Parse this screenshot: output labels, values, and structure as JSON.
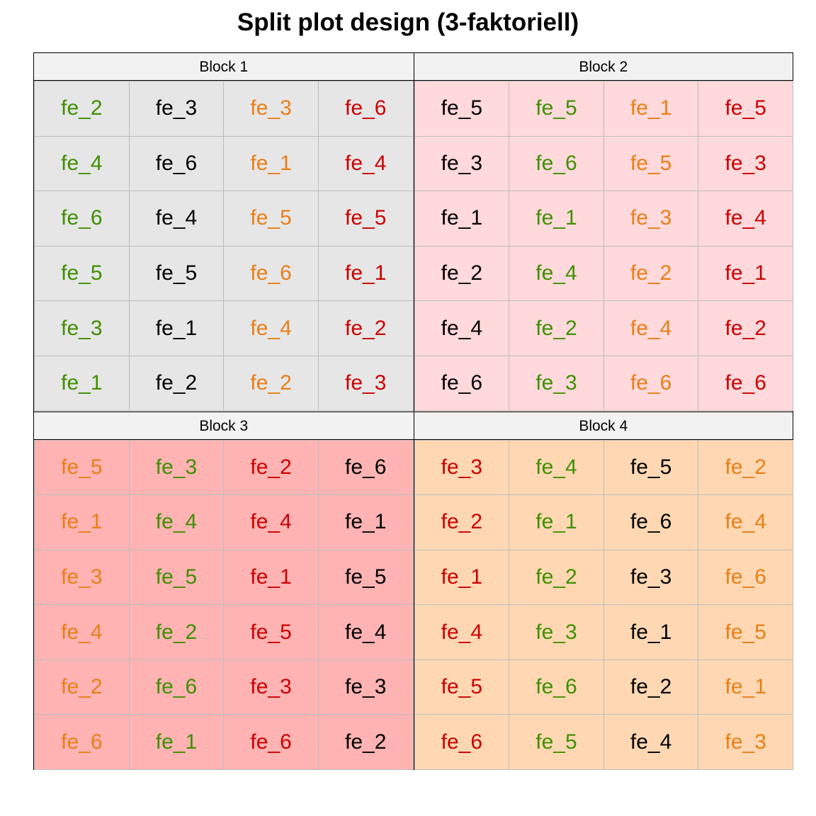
{
  "title": "Split plot design (3-faktoriell)",
  "palette": {
    "black": "#000000",
    "green": "#3f8f00",
    "orange": "#ea7e16",
    "red": "#cc0000"
  },
  "chart_data": {
    "type": "table",
    "blocks": [
      {
        "label": "Block 1",
        "background": "#e6e6e6",
        "columns": [
          {
            "color": "green",
            "labels": [
              "fe_2",
              "fe_4",
              "fe_6",
              "fe_5",
              "fe_3",
              "fe_1"
            ]
          },
          {
            "color": "black",
            "labels": [
              "fe_3",
              "fe_6",
              "fe_4",
              "fe_5",
              "fe_1",
              "fe_2"
            ]
          },
          {
            "color": "orange",
            "labels": [
              "fe_3",
              "fe_1",
              "fe_5",
              "fe_6",
              "fe_4",
              "fe_2"
            ]
          },
          {
            "color": "red",
            "labels": [
              "fe_6",
              "fe_4",
              "fe_5",
              "fe_1",
              "fe_2",
              "fe_3"
            ]
          }
        ]
      },
      {
        "label": "Block 2",
        "background": "#ffd9db",
        "columns": [
          {
            "color": "black",
            "labels": [
              "fe_5",
              "fe_3",
              "fe_1",
              "fe_2",
              "fe_4",
              "fe_6"
            ]
          },
          {
            "color": "green",
            "labels": [
              "fe_5",
              "fe_6",
              "fe_1",
              "fe_4",
              "fe_2",
              "fe_3"
            ]
          },
          {
            "color": "orange",
            "labels": [
              "fe_1",
              "fe_5",
              "fe_3",
              "fe_2",
              "fe_4",
              "fe_6"
            ]
          },
          {
            "color": "red",
            "labels": [
              "fe_5",
              "fe_3",
              "fe_4",
              "fe_1",
              "fe_2",
              "fe_6"
            ]
          }
        ]
      },
      {
        "label": "Block 3",
        "background": "#ffb3b3",
        "columns": [
          {
            "color": "orange",
            "labels": [
              "fe_5",
              "fe_1",
              "fe_3",
              "fe_4",
              "fe_2",
              "fe_6"
            ]
          },
          {
            "color": "green",
            "labels": [
              "fe_3",
              "fe_4",
              "fe_5",
              "fe_2",
              "fe_6",
              "fe_1"
            ]
          },
          {
            "color": "red",
            "labels": [
              "fe_2",
              "fe_4",
              "fe_1",
              "fe_5",
              "fe_3",
              "fe_6"
            ]
          },
          {
            "color": "black",
            "labels": [
              "fe_6",
              "fe_1",
              "fe_5",
              "fe_4",
              "fe_3",
              "fe_2"
            ]
          }
        ]
      },
      {
        "label": "Block 4",
        "background": "#ffd8b3",
        "columns": [
          {
            "color": "red",
            "labels": [
              "fe_3",
              "fe_2",
              "fe_1",
              "fe_4",
              "fe_5",
              "fe_6"
            ]
          },
          {
            "color": "green",
            "labels": [
              "fe_4",
              "fe_1",
              "fe_2",
              "fe_3",
              "fe_6",
              "fe_5"
            ]
          },
          {
            "color": "black",
            "labels": [
              "fe_5",
              "fe_6",
              "fe_3",
              "fe_1",
              "fe_2",
              "fe_4"
            ]
          },
          {
            "color": "orange",
            "labels": [
              "fe_2",
              "fe_4",
              "fe_6",
              "fe_5",
              "fe_1",
              "fe_3"
            ]
          }
        ]
      }
    ]
  }
}
